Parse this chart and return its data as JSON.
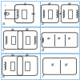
{
  "background": "#ffffff",
  "panel_labels": [
    "a",
    "b",
    "c",
    "d",
    "e",
    "f"
  ],
  "panel_border_color": "#90c0e0",
  "line_color": "#444444",
  "coil_color": "#444444",
  "text_color": "#333333",
  "label_fontsize": 3.5,
  "symbol_fontsize": 3.0
}
